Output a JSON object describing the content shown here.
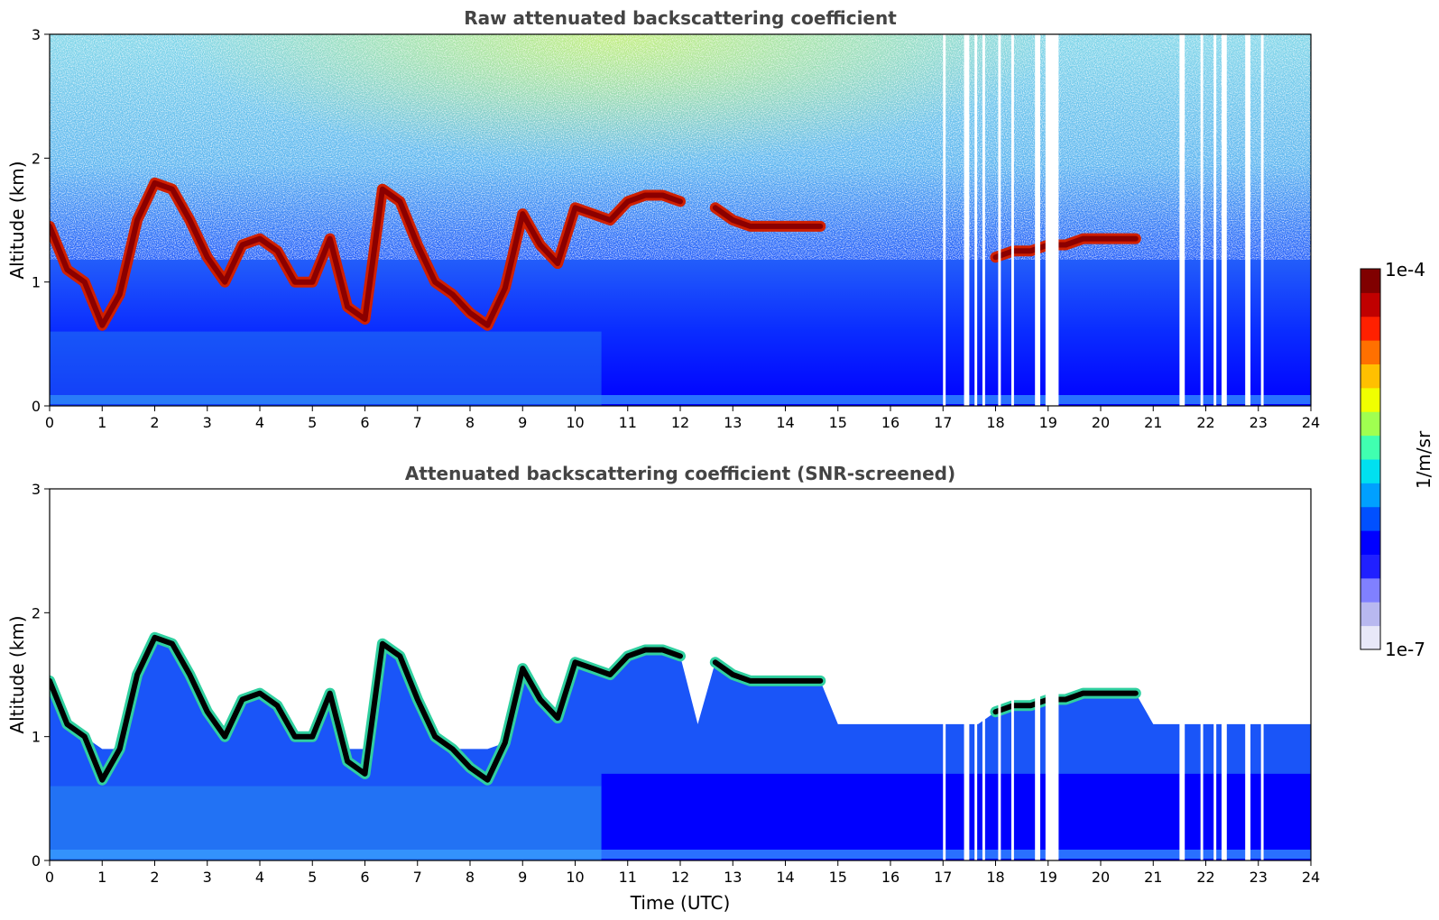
{
  "chart_data": [
    {
      "type": "heatmap",
      "title": "Raw attenuated backscattering coefficient",
      "xlabel": "",
      "ylabel": "Altitude (km)",
      "xlim": [
        0,
        24
      ],
      "ylim": [
        0,
        3
      ],
      "xticks": [
        0,
        1,
        2,
        3,
        4,
        5,
        6,
        7,
        8,
        9,
        10,
        11,
        12,
        13,
        14,
        15,
        16,
        17,
        18,
        19,
        20,
        21,
        22,
        23,
        24
      ],
      "yticks": [
        0,
        1,
        2,
        3
      ],
      "screened": false,
      "layer_base_km": [
        1.45,
        1.1,
        1.0,
        0.65,
        0.9,
        1.5,
        1.8,
        1.75,
        1.5,
        1.2,
        1.0,
        1.3,
        1.35,
        1.25,
        1.0,
        1.0,
        1.35,
        0.8,
        0.7,
        1.75,
        1.65,
        1.3,
        1.0,
        0.9,
        0.75,
        0.65,
        0.95,
        1.55,
        1.3,
        1.15,
        1.6,
        1.55,
        1.5,
        1.65,
        1.7,
        1.7,
        1.65,
        null,
        1.6,
        1.5,
        1.45,
        1.45,
        1.45,
        1.45,
        1.45,
        null,
        null,
        null,
        null,
        null,
        null,
        null,
        null,
        null,
        1.2,
        1.25,
        1.25,
        1.3,
        1.3,
        1.35,
        1.35,
        1.35,
        1.35,
        null,
        null,
        null,
        null,
        null,
        null,
        null,
        null,
        null,
        null
      ],
      "data_gaps_utc": [
        [
          17.0,
          17.05
        ],
        [
          17.4,
          17.5
        ],
        [
          17.6,
          17.65
        ],
        [
          17.75,
          17.8
        ],
        [
          18.05,
          18.1
        ],
        [
          18.3,
          18.35
        ],
        [
          18.75,
          18.85
        ],
        [
          18.95,
          19.2
        ],
        [
          21.5,
          21.6
        ],
        [
          21.9,
          21.95
        ],
        [
          22.15,
          22.2
        ],
        [
          22.3,
          22.4
        ],
        [
          22.75,
          22.85
        ],
        [
          23.05,
          23.1
        ]
      ]
    },
    {
      "type": "heatmap",
      "title": "Attenuated backscattering coefficient (SNR-screened)",
      "xlabel": "Time (UTC)",
      "ylabel": "Altitude (km)",
      "xlim": [
        0,
        24
      ],
      "ylim": [
        0,
        3
      ],
      "xticks": [
        0,
        1,
        2,
        3,
        4,
        5,
        6,
        7,
        8,
        9,
        10,
        11,
        12,
        13,
        14,
        15,
        16,
        17,
        18,
        19,
        20,
        21,
        22,
        23,
        24
      ],
      "yticks": [
        0,
        1,
        2,
        3
      ],
      "screened": true
    }
  ],
  "colorbar": {
    "label": "1/m/sr",
    "max_label": "1e-4",
    "min_label": "1e-7",
    "colors": [
      "#e8e8f8",
      "#b8b8f0",
      "#8080ff",
      "#2020ff",
      "#0000ff",
      "#0050ff",
      "#00a0ff",
      "#00e0f0",
      "#40ffb0",
      "#a0ff50",
      "#f0ff00",
      "#ffc000",
      "#ff7000",
      "#ff2000",
      "#c00000",
      "#800000"
    ]
  }
}
